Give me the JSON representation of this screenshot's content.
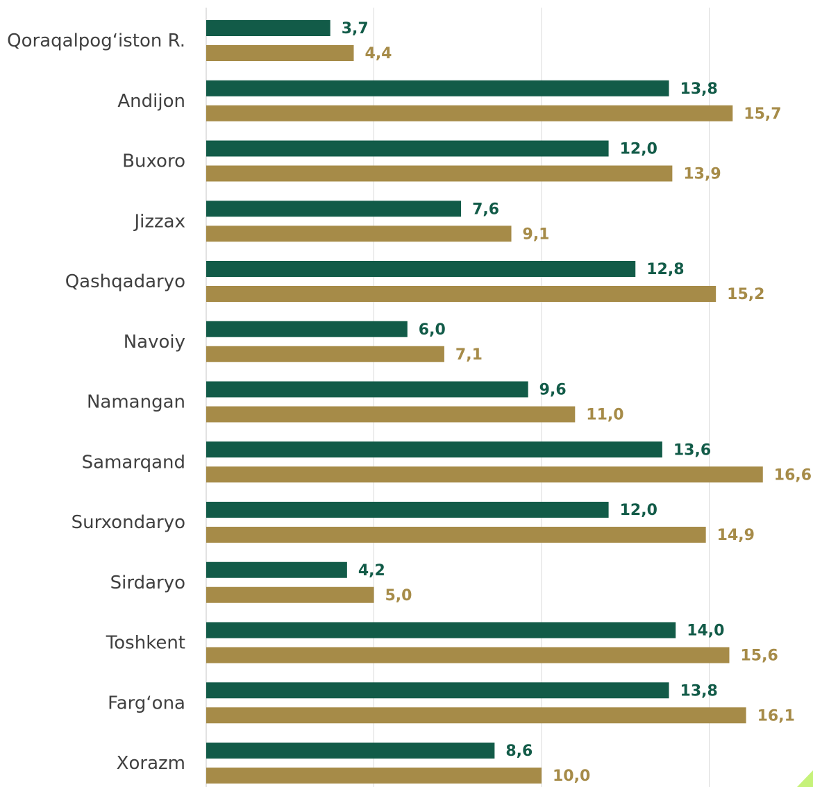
{
  "chart_data": {
    "type": "bar",
    "orientation": "horizontal",
    "categories": [
      "Qoraqalpog‘iston R.",
      "Andijon",
      "Buxoro",
      "Jizzax",
      "Qashqadaryo",
      "Navoiy",
      "Namangan",
      "Samarqand",
      "Surxondaryo",
      "Sirdaryo",
      "Toshkent",
      "Farg‘ona",
      "Xorazm"
    ],
    "category_labels": [
      "Qoraqalpog‘iston R.",
      "Andijon",
      "Buxoro",
      "Jizzax",
      "Qashqadaryo",
      "Navoiy",
      "Namangan",
      "Samarqand",
      "Surxondaryo",
      "Sirdaryo",
      "Toshkent",
      "Farg‘ona",
      "Xorazm"
    ],
    "series": [
      {
        "color": "#125b48",
        "values": [
          3.7,
          13.8,
          12.0,
          7.6,
          12.8,
          6.0,
          9.6,
          13.6,
          12.0,
          4.2,
          14.0,
          13.8,
          8.6
        ],
        "value_labels": [
          "3,7",
          "13,8",
          "12,0",
          "7,6",
          "12,8",
          "6,0",
          "9,6",
          "13,6",
          "12,0",
          "4,2",
          "14,0",
          "13,8",
          "8,6"
        ]
      },
      {
        "color": "#a68b48",
        "values": [
          4.4,
          15.7,
          13.9,
          9.1,
          15.2,
          7.1,
          11.0,
          16.6,
          14.9,
          5.0,
          15.6,
          16.1,
          10.0
        ],
        "value_labels": [
          "4,4",
          "15,7",
          "13,9",
          "9,1",
          "15,2",
          "7,1",
          "11,0",
          "16,6",
          "14,9",
          "5,0",
          "15,6",
          "16,1",
          "10,0"
        ]
      }
    ],
    "xlim": [
      0,
      18
    ],
    "gridlines": [
      0,
      5,
      10,
      15
    ],
    "grid": true,
    "legend": "none",
    "title": "",
    "xlabel": "",
    "ylabel": ""
  },
  "colors": {
    "label_text": "#404040",
    "gridline": "#d9d9d9",
    "accent_corner": "#c6f27a"
  }
}
